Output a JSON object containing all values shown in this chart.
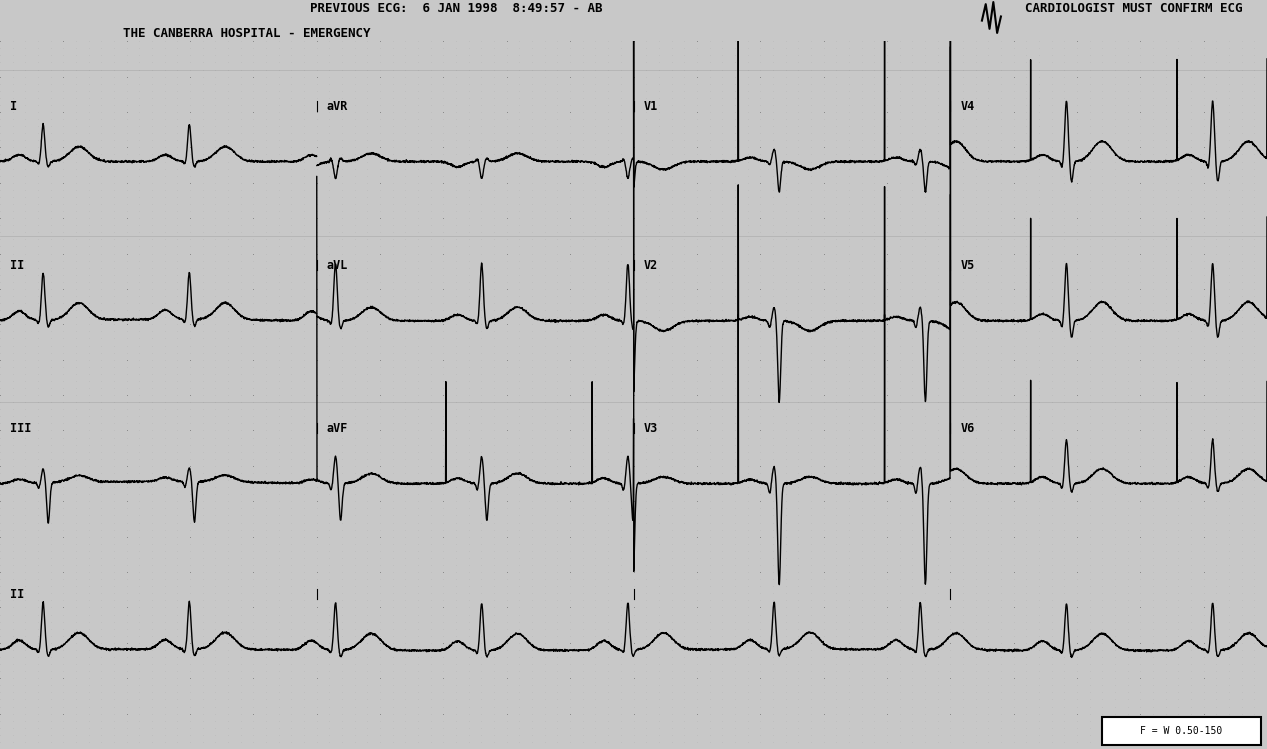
{
  "title_line1": "PREVIOUS ECG:  6 JAN 1998  8:49:57 - AB",
  "title_line2": "THE CANBERRA HOSPITAL - EMERGENCY",
  "title_right": "CARDIOLOGIST MUST CONFIRM ECG",
  "bottom_right": "F = W 0.50-150",
  "bg_color": "#c8c8c8",
  "paper_color": "#d0d0d0",
  "grid_dot_color": "#909090",
  "ecg_color": "#000000",
  "lead_labels": [
    "I",
    "aVR",
    "V1",
    "V4",
    "II",
    "aVL",
    "V2",
    "V5",
    "III",
    "aVF",
    "V3",
    "V6",
    "II"
  ],
  "heart_rate": 52,
  "sample_rate": 500,
  "seg_duration": 2.5,
  "duration": 10.0
}
